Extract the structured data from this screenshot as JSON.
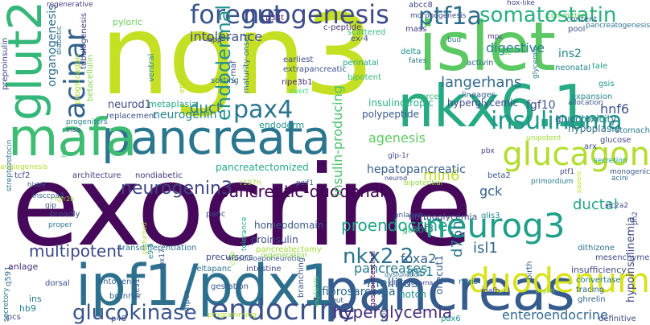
{
  "words": [
    {
      "text": "exocrine",
      "color": "#46085a"
    },
    {
      "text": "ngn3",
      "color": "#c5df23"
    },
    {
      "text": "islet",
      "color": "#5cc863"
    },
    {
      "text": "nkx6.1",
      "color": "#26a985"
    },
    {
      "text": "pancreata",
      "color": "#2a768e"
    },
    {
      "text": "pancreas",
      "color": "#365c8d"
    },
    {
      "text": "ipf1/pdx1",
      "color": "#2d708e"
    },
    {
      "text": "mafa",
      "color": "#3fbc73"
    },
    {
      "text": "glut2",
      "color": "#35b779"
    },
    {
      "text": "acinar",
      "color": "#33628d"
    },
    {
      "text": "foregut",
      "color": "#3a548c"
    },
    {
      "text": "neogenesis",
      "color": "#3f4a8a"
    },
    {
      "text": "ptf1a",
      "color": "#2e6d8e"
    },
    {
      "text": "somatostatin",
      "color": "#29af7f"
    },
    {
      "text": "glucagon",
      "color": "#b2dd2d"
    },
    {
      "text": "neurog3",
      "color": "#1f9e89"
    },
    {
      "text": "duodenum",
      "color": "#d8e219"
    },
    {
      "text": "endocrine",
      "color": "#3b528b"
    },
    {
      "text": "insulinoma",
      "color": "#1f968b"
    },
    {
      "text": "pax4",
      "color": "#2b758e"
    },
    {
      "text": "endodermal",
      "color": "#21918c"
    },
    {
      "text": "neurogenin3",
      "color": "#414487"
    },
    {
      "text": "pancreatic-duodenal",
      "color": "#440154"
    },
    {
      "text": "glucokinase",
      "color": "#39558c"
    },
    {
      "text": "nkx2.2",
      "color": "#2c718e"
    },
    {
      "text": "proendocrine",
      "color": "#20a486"
    },
    {
      "text": "hyperglycemia",
      "color": "#472d7b"
    },
    {
      "text": "enteroendocrine",
      "color": "#31688e"
    },
    {
      "text": "multipotent",
      "color": "#3e4989"
    },
    {
      "text": "min6",
      "color": "#bddf26"
    },
    {
      "text": "ductal",
      "color": "#20a386"
    },
    {
      "text": "hepatopancreatic",
      "color": "#355e8d"
    },
    {
      "text": "duct",
      "color": "#2a788e"
    },
    {
      "text": "neurogenin",
      "color": "#25838e"
    },
    {
      "text": "langerhans",
      "color": "#306a8e"
    },
    {
      "text": "mellitus",
      "color": "#30698e"
    },
    {
      "text": "pancreases",
      "color": "#287c8e"
    },
    {
      "text": "d76n",
      "color": "#2a788e"
    },
    {
      "text": "isl1",
      "color": "#32658e"
    },
    {
      "text": "ins1",
      "color": "#26828e"
    },
    {
      "text": "foxa2",
      "color": "#33638d"
    },
    {
      "text": "gck",
      "color": "#33638d"
    },
    {
      "text": "agenesis",
      "color": "#5ec962"
    },
    {
      "text": "insulin-producing",
      "color": "#4ac16d"
    },
    {
      "text": "intolerance",
      "color": "#3d4e8a"
    },
    {
      "text": "digestive",
      "color": "#27808e"
    },
    {
      "text": "ins2",
      "color": "#25858e"
    },
    {
      "text": "hnf6",
      "color": "#3b528b"
    },
    {
      "text": "fgf10",
      "color": "#3a548c"
    },
    {
      "text": "neurod1",
      "color": "#3e4a89"
    },
    {
      "text": "organogenesis",
      "color": "#2e6e8e"
    },
    {
      "text": "endoderm",
      "color": "#34608d"
    },
    {
      "text": "insulinotropic",
      "color": "#21918c"
    },
    {
      "text": "polypeptide",
      "color": "#2ab07f"
    },
    {
      "text": "hyperglycemic",
      "color": "#38588c"
    },
    {
      "text": "proinsulin",
      "color": "#3e4989"
    },
    {
      "text": "hypoinsulinemia",
      "color": "#3f4788"
    },
    {
      "text": "pancreatectomy",
      "color": "#404588"
    },
    {
      "text": "homeodomain",
      "color": "#9fda3a"
    },
    {
      "text": "glucotoxicity",
      "color": "#39568c"
    },
    {
      "text": "hypoplasia",
      "color": "#31688e"
    },
    {
      "text": "incretin",
      "color": "#2e6f8e"
    },
    {
      "text": "normoglycemia",
      "color": "#22a884"
    },
    {
      "text": "gastrin",
      "color": "#3d4d8a"
    },
    {
      "text": "hnf3",
      "color": "#35b779"
    },
    {
      "text": "onecut1",
      "color": "#2d718e"
    },
    {
      "text": "precursors",
      "color": "#355f8d"
    },
    {
      "text": "pyloric",
      "color": "#3f4889"
    },
    {
      "text": "proglucagon",
      "color": "#6ccd5a"
    },
    {
      "text": "betacellulin",
      "color": "#a8db34"
    },
    {
      "text": "metaplasia",
      "color": "#86d549"
    },
    {
      "text": "ventral",
      "color": "#21a685"
    },
    {
      "text": "epithelium",
      "color": "#24878e"
    },
    {
      "text": "pancreatectomized",
      "color": "#b5de2b"
    },
    {
      "text": "v-maf",
      "color": "#22a785"
    },
    {
      "text": "maturity-onset",
      "color": "#3f4889"
    },
    {
      "text": "extrapancreatic",
      "color": "#2c718e"
    },
    {
      "text": "earliest",
      "color": "#3b528b"
    },
    {
      "text": "ripe3b1",
      "color": "#3e4c8a"
    },
    {
      "text": "overt",
      "color": "#482677"
    },
    {
      "text": "sorting",
      "color": "#3ddb82"
    },
    {
      "text": "iapp",
      "color": "#2d708e"
    },
    {
      "text": "p33t",
      "color": "#3e4989"
    },
    {
      "text": "c-peptide",
      "color": "#472d7b"
    },
    {
      "text": "scattered",
      "color": "#46327e"
    },
    {
      "text": "ex-4",
      "color": "#35b779"
    },
    {
      "text": "mass",
      "color": "#3b528b"
    },
    {
      "text": "abcc8",
      "color": "#443983"
    },
    {
      "text": "morphogenesis",
      "color": "#404688"
    },
    {
      "text": "hox-like",
      "color": "#3d4e8a"
    },
    {
      "text": "committed",
      "color": "#3e4a89"
    },
    {
      "text": "content",
      "color": "#5cc863"
    },
    {
      "text": "pancreatogenesis",
      "color": "#32658e"
    },
    {
      "text": "pool",
      "color": "#2d718e"
    },
    {
      "text": "bud",
      "color": "#3b528b"
    },
    {
      "text": "mpc",
      "color": "#2a768e"
    },
    {
      "text": "delta",
      "color": "#46337f"
    },
    {
      "text": "fates",
      "color": "#1f958b"
    },
    {
      "text": "rise",
      "color": "#2c738e"
    },
    {
      "text": "glycemic",
      "color": "#4ac16d"
    },
    {
      "text": "perinatal",
      "color": "#2a788e"
    },
    {
      "text": "bipotent",
      "color": "#22a884"
    },
    {
      "text": "activin",
      "color": "#37b878"
    },
    {
      "text": "neonatal",
      "color": "#31688e"
    },
    {
      "text": "tale",
      "color": "#24868e"
    },
    {
      "text": "gsis",
      "color": "#1f9e89"
    },
    {
      "text": "expansion",
      "color": "#1f988b"
    },
    {
      "text": "allocation",
      "color": "#24868e"
    },
    {
      "text": "source",
      "color": "#3a548c"
    },
    {
      "text": "lineages",
      "color": "#35b779"
    },
    {
      "text": "stomach",
      "color": "#34618d"
    },
    {
      "text": "glucose",
      "color": "#2a788e"
    },
    {
      "text": "arx",
      "color": "#3e4c8a"
    },
    {
      "text": "secretion",
      "color": "#3c4f8a"
    },
    {
      "text": "unipotent",
      "color": "#1e9b8a"
    },
    {
      "text": "pbx",
      "color": "#a0da39"
    },
    {
      "text": "glp-1r",
      "color": "#404588"
    },
    {
      "text": "monogenic",
      "color": "#3e4c8a"
    },
    {
      "text": "acini",
      "color": "#3b528b"
    },
    {
      "text": "ph2",
      "color": "#2c728e"
    },
    {
      "text": "regenerative",
      "color": "#3b528b"
    },
    {
      "text": "diabetic",
      "color": "#443a83"
    },
    {
      "text": "preproinsulin",
      "color": "#2a768e"
    },
    {
      "text": "tubulogenesis",
      "color": "#3f4788"
    },
    {
      "text": "replacement",
      "color": "#423f85"
    },
    {
      "text": "progenitors",
      "color": "#3a548c"
    },
    {
      "text": "insa",
      "color": "#26828e"
    },
    {
      "text": "irs2",
      "color": "#3e4a89"
    },
    {
      "text": "angiogenesis",
      "color": "#3dbc74"
    },
    {
      "text": "tcf2",
      "color": "#b2dd2d"
    },
    {
      "text": "architecture",
      "color": "#3f4788"
    },
    {
      "text": "nondiabetic",
      "color": "#443b84"
    },
    {
      "text": "streptozotocin",
      "color": "#453581"
    },
    {
      "text": "hlxb9",
      "color": "#2d708e"
    },
    {
      "text": "r197h",
      "color": "#38598c"
    },
    {
      "text": "pcif1",
      "color": "#a0da39"
    },
    {
      "text": "ptf1",
      "color": "#35608d"
    },
    {
      "text": "beta2",
      "color": "#3e4989"
    },
    {
      "text": "bipotential",
      "color": "#3b528b"
    },
    {
      "text": "primordium",
      "color": "#93d741"
    },
    {
      "text": "insccpa2",
      "color": "#297b8e"
    },
    {
      "text": "gip",
      "color": "#355f8d"
    },
    {
      "text": "fgfr2b",
      "color": "#3d4e8a"
    },
    {
      "text": "broadly",
      "color": "#a0da39"
    },
    {
      "text": "proper",
      "color": "#3f4788"
    },
    {
      "text": "panc",
      "color": "#2a788e"
    },
    {
      "text": "q591",
      "color": "#3e4989"
    },
    {
      "text": "transdifferentiation",
      "color": "#2f6c8e"
    },
    {
      "text": "e9.5",
      "color": "#2c728e"
    },
    {
      "text": "sox17",
      "color": "#25858e"
    },
    {
      "text": "musculoaponeurotic",
      "color": "#3a548c"
    },
    {
      "text": "c18r",
      "color": "#3b528b"
    },
    {
      "text": "deltapanc",
      "color": "#8ad647"
    },
    {
      "text": "tolerance",
      "color": "#2c738e"
    },
    {
      "text": "regeneration",
      "color": "#22a785"
    },
    {
      "text": "anlagen",
      "color": "#85d54a"
    },
    {
      "text": "slc2a2",
      "color": "#3b528b"
    },
    {
      "text": "glis3",
      "color": "#3e4c8a"
    },
    {
      "text": "dorsal",
      "color": "#25848e"
    },
    {
      "text": "ontogeny",
      "color": "#3c4f8a"
    },
    {
      "text": "brunner",
      "color": "#33638d"
    },
    {
      "text": "hes1",
      "color": "#32658e"
    },
    {
      "text": "gestation",
      "color": "#3a538b"
    },
    {
      "text": "mpcs",
      "color": "#38598c"
    },
    {
      "text": "intestine",
      "color": "#355f8d"
    },
    {
      "text": "branching",
      "color": "#3e4a89"
    },
    {
      "text": "explants",
      "color": "#39568c"
    },
    {
      "text": "gastrointestinal",
      "color": "#4ac16d"
    },
    {
      "text": "dysfunction",
      "color": "#440154"
    },
    {
      "text": "glucagonoma",
      "color": "#31688e"
    },
    {
      "text": "meis",
      "color": "#3d4d8a"
    },
    {
      "text": "mafb",
      "color": "#2c728e"
    },
    {
      "text": "notch",
      "color": "#3e4989"
    },
    {
      "text": "organ",
      "color": "#1f9a8a"
    },
    {
      "text": "insufficiency",
      "color": "#a2da37"
    },
    {
      "text": "convertase",
      "color": "#3e4a89"
    },
    {
      "text": "tracing",
      "color": "#2a788e"
    },
    {
      "text": "ghrelin",
      "color": "#32658e"
    },
    {
      "text": "dithizone",
      "color": "#32648e"
    },
    {
      "text": "mesenchyme",
      "color": "#2c728e"
    },
    {
      "text": "birth",
      "color": "#3e4c8a"
    },
    {
      "text": "anlage",
      "color": "#35608d"
    },
    {
      "text": "ins",
      "color": "#472c7a"
    },
    {
      "text": "hb9",
      "color": "#2a788e"
    },
    {
      "text": "ipcs",
      "color": "#26828e"
    },
    {
      "text": "secretory",
      "color": "#3e4989"
    },
    {
      "text": "programming",
      "color": "#2a768e"
    },
    {
      "text": "p48",
      "color": "#b0dd2f"
    },
    {
      "text": "fibrosarcoma",
      "color": "#3b528b"
    },
    {
      "text": "gut",
      "color": "#31688e"
    },
    {
      "text": "postnatal",
      "color": "#355e8d"
    },
    {
      "text": "pax6",
      "color": "#2b758e"
    },
    {
      "text": "definitive",
      "color": "#1f958b"
    },
    {
      "text": "neurod",
      "color": "#3e4a89"
    },
    {
      "text": "perturbed",
      "color": "#3e4989"
    },
    {
      "text": "papers",
      "color": "#a8db34"
    },
    {
      "text": "nasp",
      "color": "#bddf26"
    }
  ]
}
